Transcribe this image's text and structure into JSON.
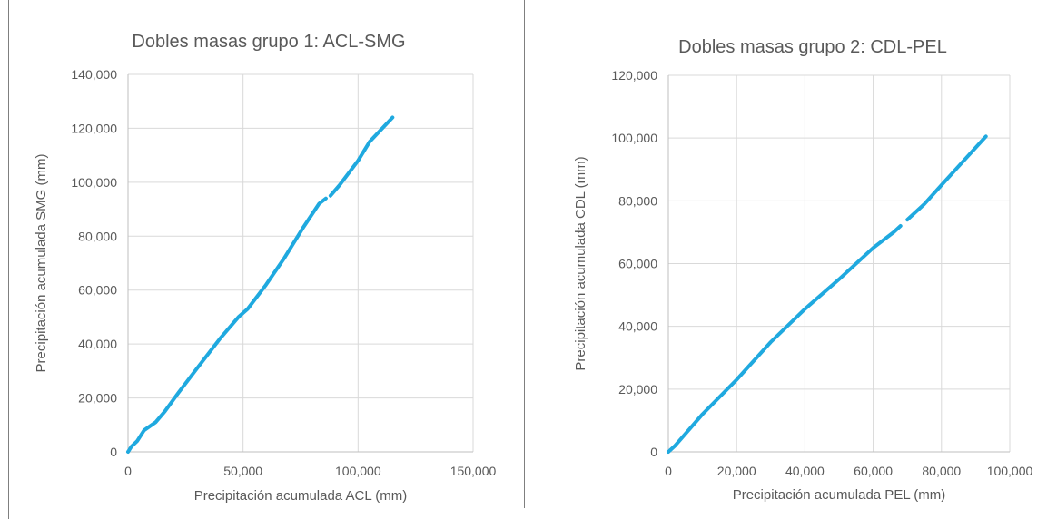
{
  "chart_data": [
    {
      "type": "line",
      "title": "Dobles masas grupo 1: ACL-SMG",
      "xlabel": "Precipitación acumulada ACL (mm)",
      "ylabel": "Precipitación acumulada  SMG (mm)",
      "xlim": [
        0,
        150000
      ],
      "ylim": [
        0,
        140000
      ],
      "x_ticks": [
        0,
        50000,
        100000,
        150000
      ],
      "x_tick_labels": [
        "0",
        "50,000",
        "100,000",
        "150,000"
      ],
      "y_ticks": [
        0,
        20000,
        40000,
        60000,
        80000,
        100000,
        120000,
        140000
      ],
      "y_tick_labels": [
        "0",
        "20,000",
        "40,000",
        "60,000",
        "80,000",
        "100,000",
        "120,000",
        "140,000"
      ],
      "grid": true,
      "color": "#1fa9df",
      "series": [
        {
          "segments": [
            [
              [
                0,
                0
              ],
              [
                1500,
                2000
              ],
              [
                4000,
                4000
              ],
              [
                7000,
                8000
              ],
              [
                12000,
                11000
              ],
              [
                16000,
                15000
              ],
              [
                22000,
                22000
              ],
              [
                30000,
                31000
              ],
              [
                40000,
                42000
              ],
              [
                48000,
                50000
              ],
              [
                52000,
                53000
              ],
              [
                60000,
                62000
              ],
              [
                68000,
                72000
              ],
              [
                76000,
                83000
              ],
              [
                83000,
                92000
              ],
              [
                86000,
                94000
              ]
            ],
            [
              [
                88000,
                95000
              ],
              [
                92000,
                99000
              ],
              [
                100000,
                108000
              ],
              [
                105000,
                115000
              ],
              [
                115000,
                124000
              ]
            ]
          ]
        }
      ]
    },
    {
      "type": "line",
      "title": "Dobles masas grupo 2: CDL-PEL",
      "xlabel": "Precipitación acumulada PEL (mm)",
      "ylabel": "Precipitación acumulada CDL (mm)",
      "xlim": [
        0,
        100000
      ],
      "ylim": [
        0,
        120000
      ],
      "x_ticks": [
        0,
        20000,
        40000,
        60000,
        80000,
        100000
      ],
      "x_tick_labels": [
        "0",
        "20,000",
        "40,000",
        "60,000",
        "80,000",
        "100,000"
      ],
      "y_ticks": [
        0,
        20000,
        40000,
        60000,
        80000,
        100000,
        120000
      ],
      "y_tick_labels": [
        "0",
        "20,000",
        "40,000",
        "60,000",
        "80,000",
        "100,000",
        "120,000"
      ],
      "grid": true,
      "color": "#1fa9df",
      "series": [
        {
          "segments": [
            [
              [
                0,
                0
              ],
              [
                2000,
                2000
              ],
              [
                10000,
                12000
              ],
              [
                20000,
                23000
              ],
              [
                30000,
                35000
              ],
              [
                40000,
                45500
              ],
              [
                50000,
                55000
              ],
              [
                60000,
                65000
              ],
              [
                66000,
                70000
              ],
              [
                68000,
                72000
              ]
            ],
            [
              [
                70000,
                74000
              ],
              [
                75000,
                79000
              ],
              [
                80000,
                85000
              ],
              [
                85000,
                91000
              ],
              [
                93000,
                100500
              ]
            ]
          ]
        }
      ]
    }
  ]
}
